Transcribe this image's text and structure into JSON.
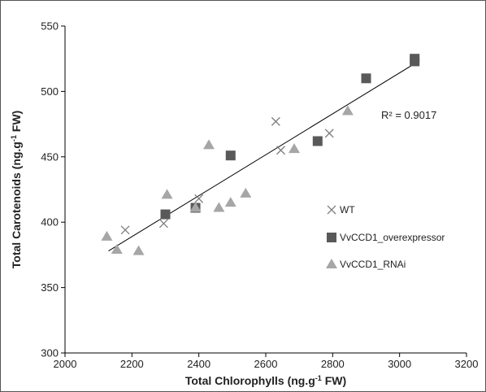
{
  "chart_data": {
    "type": "scatter",
    "xlabel_main": "Total Chlorophylls (ng.g",
    "xlabel_sup": "-1",
    "xlabel_end": " FW)",
    "ylabel_main": "Total Carotenoids (ng.g",
    "ylabel_sup": "-1",
    "ylabel_end": " FW)",
    "xlim": [
      2000,
      3200
    ],
    "ylim": [
      300,
      550
    ],
    "xticks": [
      2000,
      2200,
      2400,
      2600,
      2800,
      3000,
      3200
    ],
    "yticks": [
      300,
      350,
      400,
      450,
      500,
      550
    ],
    "grid": false,
    "legend_position": "right-middle",
    "annotation": "R² = 0.9017",
    "trendline": {
      "x": [
        2130,
        3050
      ],
      "y": [
        378,
        522
      ]
    },
    "series": [
      {
        "name": "WT",
        "marker": "x",
        "color": "#7f7f7f",
        "x": [
          2180,
          2295,
          2400,
          2630,
          2645,
          2790
        ],
        "y": [
          394,
          399,
          418,
          477,
          455,
          468
        ]
      },
      {
        "name": "VvCCD1_overexpressor",
        "marker": "square",
        "color": "#595959",
        "x": [
          2300,
          2390,
          2495,
          2755,
          2900,
          3045,
          3045
        ],
        "y": [
          406,
          411,
          451,
          462,
          510,
          525,
          523
        ]
      },
      {
        "name": "VvCCD1_RNAi",
        "marker": "triangle",
        "color": "#a6a6a6",
        "x": [
          2125,
          2155,
          2220,
          2305,
          2390,
          2430,
          2460,
          2495,
          2540,
          2685,
          2845
        ],
        "y": [
          389,
          379,
          378,
          421,
          411,
          459,
          411,
          415,
          422,
          456,
          485
        ]
      }
    ]
  }
}
